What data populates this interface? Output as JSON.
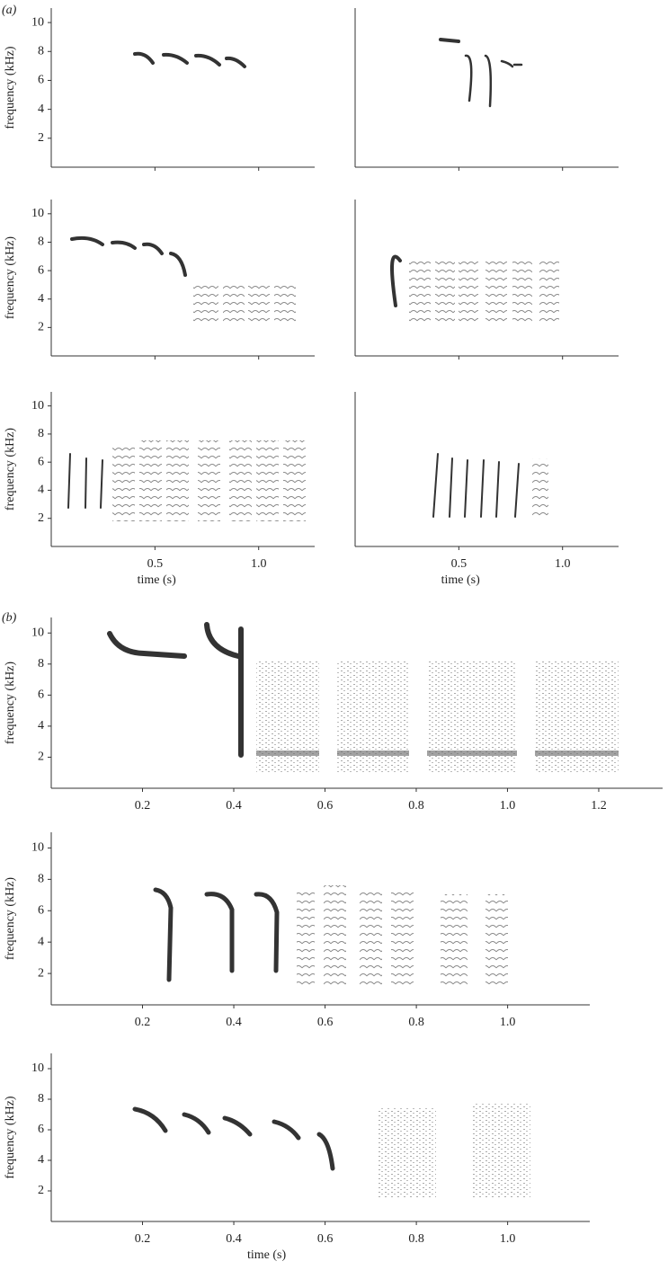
{
  "panel_labels": [
    "(a)",
    "(b)"
  ],
  "chart_data": [
    {
      "type": "spectrogram",
      "ylabel": "frequency (kHz)",
      "ylim": [
        0,
        11
      ],
      "yticks": [
        2,
        4,
        6,
        8,
        10
      ],
      "xlim": [
        0,
        1.27
      ],
      "xticks": [
        0.5,
        {
          "value": 1,
          "label": "1.0"
        }
      ],
      "xtick_labels": false
    },
    {
      "type": "spectrogram",
      "ylim": [
        0,
        11
      ],
      "xlim": [
        0,
        1.27
      ],
      "xticks": [
        0.5,
        {
          "value": 1,
          "label": "1.0"
        }
      ],
      "xtick_labels": false
    },
    {
      "type": "spectrogram",
      "ylabel": "frequency (kHz)",
      "ylim": [
        0,
        11
      ],
      "yticks": [
        2,
        4,
        6,
        8,
        10
      ],
      "xlim": [
        0,
        1.27
      ],
      "xticks": [
        0.5,
        {
          "value": 1,
          "label": "1.0"
        }
      ],
      "xtick_labels": false
    },
    {
      "type": "spectrogram",
      "ylim": [
        0,
        11
      ],
      "xlim": [
        0,
        1.27
      ],
      "xticks": [
        0.5,
        {
          "value": 1,
          "label": "1.0"
        }
      ],
      "xtick_labels": false
    },
    {
      "type": "spectrogram",
      "ylabel": "frequency (kHz)",
      "xlabel": "time (s)",
      "ylim": [
        0,
        11
      ],
      "yticks": [
        2,
        4,
        6,
        8,
        10
      ],
      "xlim": [
        0,
        1.27
      ],
      "xticks": [
        0.5,
        {
          "value": 1,
          "label": "1.0"
        }
      ],
      "xtick_labels": true
    },
    {
      "type": "spectrogram",
      "xlabel": "time (s)",
      "ylim": [
        0,
        11
      ],
      "xlim": [
        0,
        1.27
      ],
      "xticks": [
        0.5,
        {
          "value": 1,
          "label": "1.0"
        }
      ],
      "xtick_labels": true
    },
    {
      "type": "spectrogram",
      "ylabel": "frequency (kHz)",
      "ylim": [
        0,
        11
      ],
      "yticks": [
        2,
        4,
        6,
        8,
        10
      ],
      "xlim": [
        0,
        1.34
      ],
      "xticks": [
        0.2,
        0.4,
        0.6,
        0.8,
        {
          "value": 1,
          "label": "1.0"
        },
        1.2
      ],
      "xtick_labels": true
    },
    {
      "type": "spectrogram",
      "ylabel": "frequency (kHz)",
      "ylim": [
        0,
        11
      ],
      "yticks": [
        2,
        4,
        6,
        8,
        10
      ],
      "xlim": [
        0,
        1.18
      ],
      "xticks": [
        0.2,
        0.4,
        0.6,
        0.8,
        {
          "value": 1,
          "label": "1.0"
        }
      ],
      "xtick_labels": true
    },
    {
      "type": "spectrogram",
      "ylabel": "frequency (kHz)",
      "xlabel": "time (s)",
      "ylim": [
        0,
        11
      ],
      "yticks": [
        2,
        4,
        6,
        8,
        10
      ],
      "xlim": [
        0,
        1.18
      ],
      "xticks": [
        0.2,
        0.4,
        0.6,
        0.8,
        {
          "value": 1,
          "label": "1.0"
        }
      ],
      "xtick_labels": true
    }
  ]
}
